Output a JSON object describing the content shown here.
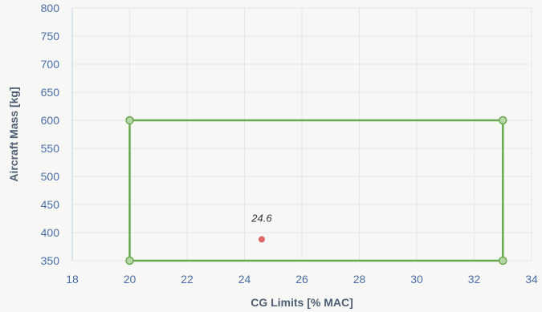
{
  "chart_data": {
    "type": "scatter",
    "xlabel": "CG Limits [% MAC]",
    "ylabel": "Aircraft Mass [kg]",
    "xlim": [
      18,
      34
    ],
    "ylim": [
      350,
      800
    ],
    "x_ticks": [
      "18",
      "20",
      "22",
      "24",
      "26",
      "28",
      "30",
      "32",
      "34"
    ],
    "y_ticks": [
      "350",
      "400",
      "450",
      "500",
      "550",
      "600",
      "650",
      "700",
      "750",
      "800"
    ],
    "grid": true,
    "series": [
      {
        "color": "#6aa84f",
        "closed": true,
        "points": [
          {
            "x": 20,
            "y": 600
          },
          {
            "x": 33,
            "y": 600
          },
          {
            "x": 33,
            "y": 350
          },
          {
            "x": 20,
            "y": 350
          }
        ]
      },
      {
        "color": "#e06666",
        "points": [
          {
            "x": 24.6,
            "y": 388,
            "label": "24.6"
          }
        ]
      }
    ]
  }
}
